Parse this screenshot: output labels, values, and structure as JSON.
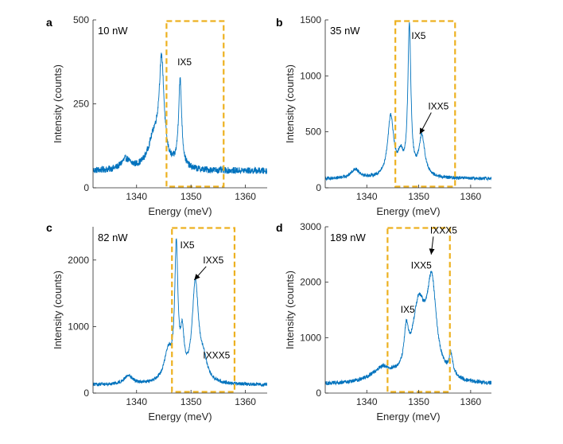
{
  "colors": {
    "line": "#0072BD",
    "box": "#EDB120",
    "axis": "#262626"
  },
  "chart_data": [
    {
      "type": "line",
      "panel": "a",
      "power": "10 nW",
      "xlabel": "Energy (meV)",
      "ylabel": "Intensity (counts)",
      "xlim": [
        1332,
        1364
      ],
      "ylim": [
        0,
        500
      ],
      "xticks": [
        1340,
        1350,
        1360
      ],
      "yticks": [
        0,
        250,
        500
      ],
      "box_x": [
        1345.5,
        1356.0
      ],
      "box_y": [
        0,
        500
      ],
      "peaks": [
        {
          "center": 1338.0,
          "amp": 30,
          "width": 1.0
        },
        {
          "center": 1343.2,
          "amp": 90,
          "width": 1.3
        },
        {
          "center": 1344.6,
          "amp": 300,
          "width": 0.55
        },
        {
          "center": 1348.0,
          "amp": 260,
          "width": 0.35
        }
      ],
      "baseline": 50,
      "noise": 10,
      "annotations": [
        {
          "text": "IX5",
          "x": 1347.5,
          "y": 365,
          "arrow": false
        }
      ]
    },
    {
      "type": "line",
      "panel": "b",
      "power": "35 nW",
      "xlabel": "Energy (meV)",
      "ylabel": "Intensity (counts)",
      "xlim": [
        1332,
        1364
      ],
      "ylim": [
        0,
        1500
      ],
      "xticks": [
        1340,
        1350,
        1360
      ],
      "yticks": [
        0,
        500,
        1000,
        1500
      ],
      "box_x": [
        1345.5,
        1357.0
      ],
      "box_y": [
        0,
        1500
      ],
      "peaks": [
        {
          "center": 1337.8,
          "amp": 80,
          "width": 1.0
        },
        {
          "center": 1344.6,
          "amp": 540,
          "width": 0.7
        },
        {
          "center": 1346.5,
          "amp": 170,
          "width": 0.6
        },
        {
          "center": 1348.2,
          "amp": 1330,
          "width": 0.35
        },
        {
          "center": 1350.6,
          "amp": 360,
          "width": 0.7
        }
      ],
      "baseline": 80,
      "noise": 15,
      "annotations": [
        {
          "text": "IX5",
          "x": 1348.6,
          "y": 1330,
          "arrow": false
        },
        {
          "text": "IXX5",
          "x": 1351.8,
          "y": 700,
          "arrow": true,
          "ax": 1350.2,
          "ay": 480
        }
      ]
    },
    {
      "type": "line",
      "panel": "c",
      "power": "82 nW",
      "xlabel": "Energy (meV)",
      "ylabel": "Intensity (counts)",
      "xlim": [
        1332,
        1364
      ],
      "ylim": [
        0,
        2500
      ],
      "xticks": [
        1340,
        1350,
        1360
      ],
      "yticks": [
        0,
        1000,
        2000
      ],
      "box_x": [
        1346.5,
        1358.0
      ],
      "box_y": [
        0,
        2500
      ],
      "peaks": [
        {
          "center": 1338.5,
          "amp": 130,
          "width": 1.0
        },
        {
          "center": 1345.8,
          "amp": 450,
          "width": 0.9
        },
        {
          "center": 1347.3,
          "amp": 1950,
          "width": 0.35
        },
        {
          "center": 1348.4,
          "amp": 620,
          "width": 0.4
        },
        {
          "center": 1350.8,
          "amp": 1480,
          "width": 0.7
        },
        {
          "center": 1352.3,
          "amp": 280,
          "width": 0.8
        }
      ],
      "baseline": 120,
      "noise": 25,
      "annotations": [
        {
          "text": "IX5",
          "x": 1348.0,
          "y": 2180,
          "arrow": false
        },
        {
          "text": "IXX5",
          "x": 1352.2,
          "y": 1950,
          "arrow": true,
          "ax": 1350.6,
          "ay": 1700
        },
        {
          "text": "IXXX5",
          "x": 1352.2,
          "y": 520,
          "arrow": false
        }
      ]
    },
    {
      "type": "line",
      "panel": "d",
      "power": "189 nW",
      "xlabel": "Energy (meV)",
      "ylabel": "Intensity (counts)",
      "xlim": [
        1332,
        1364
      ],
      "ylim": [
        0,
        3000
      ],
      "xticks": [
        1340,
        1350,
        1360
      ],
      "yticks": [
        0,
        1000,
        2000,
        3000
      ],
      "box_x": [
        1344.0,
        1356.0
      ],
      "box_y": [
        0,
        3000
      ],
      "peaks": [
        {
          "center": 1343.0,
          "amp": 250,
          "width": 2.5
        },
        {
          "center": 1347.6,
          "amp": 650,
          "width": 0.5
        },
        {
          "center": 1350.0,
          "amp": 1300,
          "width": 1.5
        },
        {
          "center": 1352.5,
          "amp": 1650,
          "width": 1.1
        },
        {
          "center": 1356.2,
          "amp": 380,
          "width": 0.45
        }
      ],
      "baseline": 150,
      "noise": 35,
      "annotations": [
        {
          "text": "IXXX5",
          "x": 1352.2,
          "y": 2880,
          "arrow": true,
          "ax": 1352.4,
          "ay": 2500
        },
        {
          "text": "IXX5",
          "x": 1348.5,
          "y": 2250,
          "arrow": false
        },
        {
          "text": "IX5",
          "x": 1346.5,
          "y": 1450,
          "arrow": false
        }
      ]
    }
  ]
}
